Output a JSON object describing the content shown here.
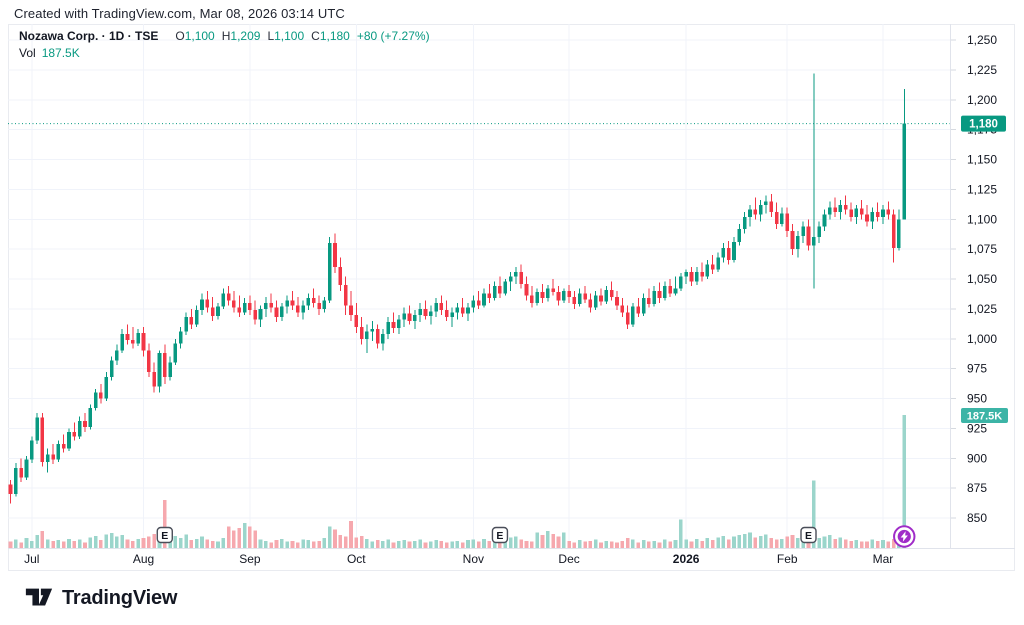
{
  "attribution": "Created with TradingView.com, Mar 08, 2026 03:14 UTC",
  "legend": {
    "title": "Nozawa Corp. · 1D · TSE",
    "o_label": "O",
    "o": "1,100",
    "h_label": "H",
    "h": "1,209",
    "l_label": "L",
    "l": "1,100",
    "c_label": "C",
    "c": "1,180",
    "change": "+80 (+7.27%)",
    "vol_label": "Vol",
    "vol_value": "187.5K"
  },
  "logo": {
    "text": "TradingView"
  },
  "colors": {
    "up": "#089981",
    "down": "#F23645",
    "vol_up": "#9BD5CB",
    "vol_down": "#F6A8AE",
    "accent": "#089981",
    "vol_badge": "#3CB4A6",
    "flash": "#A02CC8",
    "text": "#131722",
    "grid": "#F0F3FA",
    "tick": "#D6DAE0",
    "border": "#E0E3EB",
    "marker_border": "#4A4E59"
  },
  "chart_data": {
    "type": "candlestick",
    "symbol": "Nozawa Corp.",
    "interval": "1D",
    "exchange": "TSE",
    "ohlc_display": {
      "o": "1,100",
      "h": "1,209",
      "l": "1,100",
      "c": "1,180",
      "change": "+80 (+7.27%)"
    },
    "volume_display": "187.5K",
    "last_price": 1180,
    "last_volume_k": 187.5,
    "price_line": 1180,
    "y_axis": {
      "min": 850,
      "max": 1250,
      "step": 25,
      "ticks": [
        "1,250",
        "1,225",
        "1,200",
        "1,175",
        "1,150",
        "1,125",
        "1,100",
        "1,075",
        "1,050",
        "1,025",
        "1,000",
        "975",
        "950",
        "925",
        "900",
        "875",
        "850"
      ]
    },
    "x_axis": {
      "months": [
        {
          "label": "Jul",
          "index": 4,
          "bold": false
        },
        {
          "label": "Aug",
          "index": 25,
          "bold": false
        },
        {
          "label": "Sep",
          "index": 45,
          "bold": false
        },
        {
          "label": "Oct",
          "index": 65,
          "bold": false
        },
        {
          "label": "Nov",
          "index": 87,
          "bold": false
        },
        {
          "label": "Dec",
          "index": 105,
          "bold": false
        },
        {
          "label": "2026",
          "index": 127,
          "bold": true
        },
        {
          "label": "Feb",
          "index": 146,
          "bold": false
        },
        {
          "label": "Mar",
          "index": 164,
          "bold": false
        }
      ]
    },
    "markers": {
      "earnings_label": "E",
      "earnings_indices": [
        29,
        92,
        150
      ],
      "flash_index": 168
    },
    "candles": [
      [
        878,
        882,
        862,
        870,
        9
      ],
      [
        870,
        896,
        868,
        892,
        12
      ],
      [
        892,
        900,
        880,
        884,
        8
      ],
      [
        884,
        902,
        882,
        899,
        14
      ],
      [
        899,
        918,
        896,
        915,
        10
      ],
      [
        915,
        938,
        912,
        934,
        18
      ],
      [
        934,
        938,
        893,
        897,
        24
      ],
      [
        897,
        908,
        888,
        903,
        12
      ],
      [
        903,
        912,
        895,
        899,
        10
      ],
      [
        899,
        915,
        897,
        912,
        11
      ],
      [
        912,
        920,
        905,
        908,
        9
      ],
      [
        908,
        925,
        906,
        922,
        13
      ],
      [
        922,
        930,
        915,
        918,
        10
      ],
      [
        918,
        935,
        916,
        931,
        12
      ],
      [
        931,
        938,
        922,
        926,
        8
      ],
      [
        926,
        945,
        924,
        942,
        15
      ],
      [
        942,
        958,
        940,
        955,
        17
      ],
      [
        955,
        962,
        946,
        950,
        11
      ],
      [
        950,
        972,
        948,
        968,
        19
      ],
      [
        968,
        985,
        965,
        982,
        21
      ],
      [
        982,
        995,
        978,
        990,
        16
      ],
      [
        990,
        1008,
        988,
        1004,
        18
      ],
      [
        1004,
        1012,
        995,
        999,
        12
      ],
      [
        999,
        1010,
        992,
        996,
        10
      ],
      [
        996,
        1008,
        994,
        1005,
        13
      ],
      [
        1005,
        1010,
        985,
        990,
        14
      ],
      [
        990,
        996,
        968,
        972,
        16
      ],
      [
        972,
        980,
        955,
        960,
        20
      ],
      [
        960,
        990,
        955,
        988,
        18
      ],
      [
        988,
        995,
        962,
        968,
        68
      ],
      [
        968,
        985,
        965,
        980,
        15
      ],
      [
        980,
        1000,
        978,
        996,
        17
      ],
      [
        996,
        1010,
        992,
        1006,
        14
      ],
      [
        1006,
        1022,
        1003,
        1018,
        19
      ],
      [
        1018,
        1025,
        1008,
        1012,
        11
      ],
      [
        1012,
        1028,
        1010,
        1024,
        13
      ],
      [
        1024,
        1038,
        1020,
        1033,
        16
      ],
      [
        1033,
        1040,
        1022,
        1026,
        12
      ],
      [
        1026,
        1035,
        1015,
        1019,
        10
      ],
      [
        1019,
        1030,
        1016,
        1027,
        9
      ],
      [
        1027,
        1042,
        1025,
        1038,
        14
      ],
      [
        1038,
        1044,
        1028,
        1032,
        30
      ],
      [
        1032,
        1040,
        1022,
        1026,
        25
      ],
      [
        1026,
        1036,
        1018,
        1022,
        28
      ],
      [
        1022,
        1034,
        1020,
        1030,
        35
      ],
      [
        1030,
        1036,
        1020,
        1024,
        30
      ],
      [
        1024,
        1032,
        1012,
        1016,
        25
      ],
      [
        1016,
        1028,
        1010,
        1025,
        12
      ],
      [
        1025,
        1035,
        1018,
        1030,
        10
      ],
      [
        1030,
        1038,
        1022,
        1026,
        8
      ],
      [
        1026,
        1032,
        1014,
        1018,
        11
      ],
      [
        1018,
        1030,
        1015,
        1027,
        13
      ],
      [
        1027,
        1036,
        1021,
        1032,
        9
      ],
      [
        1032,
        1040,
        1024,
        1028,
        10
      ],
      [
        1028,
        1035,
        1018,
        1022,
        8
      ],
      [
        1022,
        1032,
        1016,
        1028,
        12
      ],
      [
        1028,
        1038,
        1024,
        1034,
        11
      ],
      [
        1034,
        1042,
        1026,
        1030,
        9
      ],
      [
        1030,
        1036,
        1020,
        1025,
        10
      ],
      [
        1025,
        1035,
        1022,
        1032,
        14
      ],
      [
        1032,
        1085,
        1030,
        1080,
        30
      ],
      [
        1080,
        1088,
        1055,
        1060,
        26
      ],
      [
        1060,
        1068,
        1040,
        1045,
        18
      ],
      [
        1045,
        1052,
        1020,
        1028,
        16
      ],
      [
        1028,
        1040,
        1015,
        1020,
        38
      ],
      [
        1020,
        1030,
        1005,
        1010,
        15
      ],
      [
        1010,
        1018,
        995,
        1000,
        17
      ],
      [
        1000,
        1012,
        988,
        1006,
        13
      ],
      [
        1006,
        1015,
        998,
        1008,
        9
      ],
      [
        1008,
        1012,
        992,
        996,
        11
      ],
      [
        996,
        1008,
        990,
        1004,
        10
      ],
      [
        1004,
        1018,
        1000,
        1014,
        12
      ],
      [
        1014,
        1022,
        1005,
        1009,
        8
      ],
      [
        1009,
        1020,
        1004,
        1016,
        10
      ],
      [
        1016,
        1026,
        1010,
        1021,
        11
      ],
      [
        1021,
        1028,
        1012,
        1015,
        9
      ],
      [
        1015,
        1024,
        1008,
        1020,
        10
      ],
      [
        1020,
        1030,
        1014,
        1025,
        12
      ],
      [
        1025,
        1032,
        1016,
        1019,
        8
      ],
      [
        1019,
        1028,
        1012,
        1023,
        9
      ],
      [
        1023,
        1034,
        1018,
        1030,
        11
      ],
      [
        1030,
        1036,
        1020,
        1024,
        10
      ],
      [
        1024,
        1032,
        1015,
        1018,
        8
      ],
      [
        1018,
        1026,
        1010,
        1022,
        9
      ],
      [
        1022,
        1030,
        1016,
        1026,
        10
      ],
      [
        1026,
        1034,
        1018,
        1021,
        8
      ],
      [
        1021,
        1030,
        1015,
        1026,
        11
      ],
      [
        1026,
        1036,
        1022,
        1032,
        12
      ],
      [
        1032,
        1040,
        1025,
        1028,
        9
      ],
      [
        1028,
        1042,
        1026,
        1038,
        13
      ],
      [
        1038,
        1046,
        1030,
        1034,
        10
      ],
      [
        1034,
        1048,
        1032,
        1044,
        14
      ],
      [
        1044,
        1052,
        1034,
        1038,
        20
      ],
      [
        1038,
        1050,
        1036,
        1048,
        11
      ],
      [
        1048,
        1056,
        1040,
        1052,
        15
      ],
      [
        1052,
        1060,
        1046,
        1056,
        16
      ],
      [
        1056,
        1062,
        1042,
        1046,
        12
      ],
      [
        1046,
        1052,
        1032,
        1036,
        10
      ],
      [
        1036,
        1044,
        1026,
        1030,
        9
      ],
      [
        1030,
        1042,
        1028,
        1039,
        22
      ],
      [
        1039,
        1046,
        1030,
        1034,
        18
      ],
      [
        1034,
        1045,
        1031,
        1042,
        24
      ],
      [
        1042,
        1050,
        1036,
        1039,
        20
      ],
      [
        1039,
        1044,
        1028,
        1032,
        16
      ],
      [
        1032,
        1042,
        1030,
        1040,
        22
      ],
      [
        1040,
        1045,
        1030,
        1035,
        10
      ],
      [
        1035,
        1040,
        1025,
        1029,
        8
      ],
      [
        1029,
        1042,
        1027,
        1038,
        11
      ],
      [
        1038,
        1044,
        1030,
        1033,
        9
      ],
      [
        1033,
        1038,
        1022,
        1026,
        10
      ],
      [
        1026,
        1040,
        1024,
        1036,
        12
      ],
      [
        1036,
        1042,
        1028,
        1031,
        8
      ],
      [
        1031,
        1044,
        1029,
        1041,
        10
      ],
      [
        1041,
        1048,
        1032,
        1035,
        9
      ],
      [
        1035,
        1040,
        1024,
        1028,
        8
      ],
      [
        1028,
        1034,
        1018,
        1022,
        10
      ],
      [
        1022,
        1028,
        1008,
        1012,
        14
      ],
      [
        1012,
        1030,
        1010,
        1027,
        12
      ],
      [
        1027,
        1034,
        1018,
        1021,
        8
      ],
      [
        1021,
        1038,
        1019,
        1034,
        11
      ],
      [
        1034,
        1042,
        1026,
        1029,
        9
      ],
      [
        1029,
        1044,
        1027,
        1040,
        10
      ],
      [
        1040,
        1047,
        1030,
        1034,
        8
      ],
      [
        1034,
        1048,
        1032,
        1044,
        12
      ],
      [
        1044,
        1050,
        1035,
        1038,
        9
      ],
      [
        1038,
        1052,
        1036,
        1042,
        11
      ],
      [
        1042,
        1055,
        1040,
        1052,
        40
      ],
      [
        1052,
        1058,
        1046,
        1056,
        12
      ],
      [
        1056,
        1060,
        1044,
        1048,
        9
      ],
      [
        1048,
        1060,
        1045,
        1056,
        13
      ],
      [
        1056,
        1064,
        1048,
        1052,
        10
      ],
      [
        1052,
        1066,
        1050,
        1062,
        14
      ],
      [
        1062,
        1070,
        1054,
        1058,
        11
      ],
      [
        1058,
        1072,
        1056,
        1068,
        15
      ],
      [
        1068,
        1080,
        1064,
        1076,
        17
      ],
      [
        1076,
        1082,
        1062,
        1066,
        12
      ],
      [
        1066,
        1085,
        1064,
        1081,
        16
      ],
      [
        1081,
        1096,
        1078,
        1092,
        18
      ],
      [
        1092,
        1106,
        1088,
        1102,
        20
      ],
      [
        1102,
        1112,
        1094,
        1108,
        22
      ],
      [
        1108,
        1118,
        1100,
        1104,
        15
      ],
      [
        1104,
        1116,
        1098,
        1112,
        17
      ],
      [
        1112,
        1120,
        1105,
        1115,
        19
      ],
      [
        1115,
        1121,
        1102,
        1106,
        14
      ],
      [
        1106,
        1114,
        1092,
        1096,
        12
      ],
      [
        1096,
        1110,
        1094,
        1105,
        13
      ],
      [
        1105,
        1110,
        1085,
        1090,
        16
      ],
      [
        1090,
        1096,
        1070,
        1075,
        18
      ],
      [
        1075,
        1090,
        1068,
        1086,
        14
      ],
      [
        1086,
        1098,
        1080,
        1094,
        12
      ],
      [
        1094,
        1100,
        1074,
        1078,
        15
      ],
      [
        1078,
        1222,
        1042,
        1085,
        95
      ],
      [
        1085,
        1098,
        1080,
        1094,
        14
      ],
      [
        1094,
        1108,
        1090,
        1104,
        16
      ],
      [
        1104,
        1115,
        1100,
        1110,
        18
      ],
      [
        1110,
        1118,
        1102,
        1106,
        13
      ],
      [
        1106,
        1116,
        1100,
        1112,
        15
      ],
      [
        1112,
        1120,
        1104,
        1108,
        12
      ],
      [
        1108,
        1114,
        1098,
        1102,
        10
      ],
      [
        1102,
        1112,
        1096,
        1109,
        11
      ],
      [
        1109,
        1116,
        1100,
        1104,
        9
      ],
      [
        1104,
        1112,
        1094,
        1098,
        9
      ],
      [
        1098,
        1110,
        1092,
        1106,
        12
      ],
      [
        1106,
        1114,
        1098,
        1102,
        10
      ],
      [
        1102,
        1112,
        1096,
        1108,
        11
      ],
      [
        1108,
        1115,
        1100,
        1104,
        9
      ],
      [
        1104,
        1108,
        1064,
        1076,
        13
      ],
      [
        1076,
        1108,
        1074,
        1100,
        15
      ],
      [
        1100,
        1209,
        1100,
        1180,
        187.5
      ]
    ]
  }
}
